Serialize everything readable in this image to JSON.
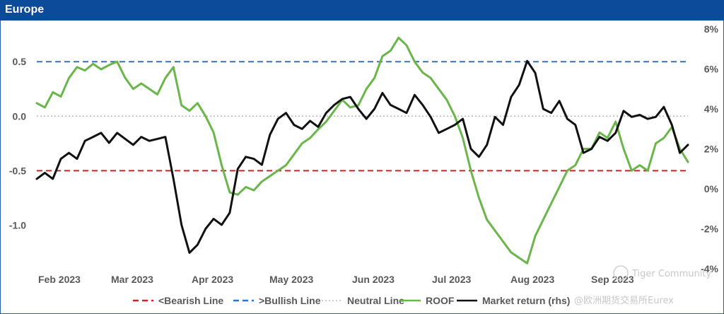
{
  "panel": {
    "title": "Europe"
  },
  "chart_data": {
    "type": "line",
    "title": "Europe",
    "x_ticks": [
      "Feb 2023",
      "Mar 2023",
      "Apr 2023",
      "May 2023",
      "Jun 2023",
      "Jul 2023",
      "Aug 2023",
      "Sep 2023"
    ],
    "y_left": {
      "min": -1.4,
      "max": 0.8,
      "ticks": [
        "0.5",
        "0.0",
        "-0.5",
        "-1.0"
      ],
      "tick_values": [
        0.5,
        0.0,
        -0.5,
        -1.0
      ]
    },
    "y_right": {
      "min": -4,
      "max": 8,
      "ticks": [
        "8%",
        "6%",
        "4%",
        "2%",
        "0%",
        "-2%",
        "-4%"
      ],
      "tick_values": [
        8,
        6,
        4,
        2,
        0,
        -2,
        -4
      ]
    },
    "reference_lines": [
      {
        "name": "<Bearish Line",
        "value": -0.5,
        "color": "#c0262d",
        "dash": "dashed"
      },
      {
        "name": ">Bullish Line",
        "value": 0.5,
        "color": "#2e75c9",
        "dash": "dashed"
      },
      {
        "name": "Neutral Line",
        "value": 0.0,
        "color": "#b8b8b8",
        "dash": "dotted"
      }
    ],
    "series": [
      {
        "name": "ROOF",
        "axis": "left",
        "color": "#6ab64a",
        "x": [
          0,
          3,
          6,
          9,
          12,
          15,
          18,
          21,
          24,
          27,
          30,
          33,
          36,
          39,
          42,
          45,
          48,
          51,
          54,
          57,
          60,
          63,
          66,
          69,
          72,
          75,
          78,
          81,
          84,
          87,
          90,
          93,
          96,
          99,
          102,
          105,
          108,
          111,
          114,
          117,
          120,
          123,
          126,
          129,
          132,
          135,
          138,
          141,
          144,
          147,
          150,
          153,
          156,
          159,
          162,
          165,
          168,
          171,
          174,
          177,
          180,
          183,
          186,
          189,
          192,
          195,
          198,
          201,
          204,
          207,
          210,
          213,
          216,
          219,
          222,
          225,
          228,
          231,
          234,
          237,
          240,
          243
        ],
        "values": [
          0.12,
          0.08,
          0.22,
          0.18,
          0.35,
          0.45,
          0.42,
          0.48,
          0.43,
          0.47,
          0.5,
          0.35,
          0.25,
          0.3,
          0.25,
          0.2,
          0.35,
          0.45,
          0.1,
          0.05,
          0.12,
          0.0,
          -0.15,
          -0.45,
          -0.7,
          -0.72,
          -0.65,
          -0.68,
          -0.6,
          -0.55,
          -0.5,
          -0.45,
          -0.35,
          -0.25,
          -0.2,
          -0.12,
          -0.05,
          0.05,
          0.15,
          0.08,
          0.1,
          0.25,
          0.35,
          0.55,
          0.6,
          0.72,
          0.65,
          0.5,
          0.4,
          0.35,
          0.25,
          0.15,
          0.0,
          -0.2,
          -0.5,
          -0.75,
          -0.95,
          -1.05,
          -1.15,
          -1.25,
          -1.3,
          -1.35,
          -1.1,
          -0.95,
          -0.8,
          -0.65,
          -0.5,
          -0.45,
          -0.3,
          -0.3,
          -0.15,
          -0.2,
          -0.05,
          -0.3,
          -0.5,
          -0.45,
          -0.5,
          -0.25,
          -0.2,
          -0.1,
          -0.3,
          -0.42
        ]
      },
      {
        "name": "Market return (rhs)",
        "axis": "right",
        "color": "#111111",
        "x": [
          0,
          3,
          6,
          9,
          12,
          15,
          18,
          21,
          24,
          27,
          30,
          33,
          36,
          39,
          42,
          45,
          48,
          51,
          54,
          57,
          60,
          63,
          66,
          69,
          72,
          75,
          78,
          81,
          84,
          87,
          90,
          93,
          96,
          99,
          102,
          105,
          108,
          111,
          114,
          117,
          120,
          123,
          126,
          129,
          132,
          135,
          138,
          141,
          144,
          147,
          150,
          153,
          156,
          159,
          162,
          165,
          168,
          171,
          174,
          177,
          180,
          183,
          186,
          189,
          192,
          195,
          198,
          201,
          204,
          207,
          210,
          213,
          216,
          219,
          222,
          225,
          228,
          231,
          234,
          237,
          240,
          243
        ],
        "values": [
          0.5,
          0.8,
          0.5,
          1.5,
          1.8,
          1.5,
          2.4,
          2.6,
          2.8,
          2.3,
          2.8,
          2.5,
          2.2,
          2.6,
          2.4,
          2.5,
          2.6,
          0.5,
          -1.8,
          -3.2,
          -2.8,
          -2.0,
          -1.5,
          -1.8,
          -1.2,
          1.0,
          1.6,
          1.5,
          1.2,
          2.7,
          3.5,
          3.8,
          3.2,
          3.0,
          3.4,
          3.1,
          3.8,
          4.2,
          4.5,
          4.6,
          4.0,
          3.5,
          4.0,
          4.8,
          4.2,
          4.0,
          3.8,
          4.7,
          4.2,
          3.6,
          2.8,
          3.0,
          3.2,
          3.5,
          2.0,
          1.6,
          2.2,
          3.6,
          3.2,
          4.6,
          5.2,
          6.4,
          5.8,
          4.0,
          3.8,
          4.4,
          3.5,
          3.2,
          1.8,
          2.0,
          2.6,
          2.4,
          2.8,
          3.9,
          3.6,
          3.7,
          3.5,
          3.6,
          4.1,
          3.2,
          1.8,
          2.2
        ]
      }
    ],
    "legend": {
      "placement": "bottom",
      "items": [
        {
          "label": "<Bearish Line",
          "color": "#c0262d",
          "style": "dashed"
        },
        {
          "label": ">Bullish Line",
          "color": "#2e75c9",
          "style": "dashed"
        },
        {
          "label": "Neutral Line",
          "color": "#b8b8b8",
          "style": "dotted"
        },
        {
          "label": "ROOF",
          "color": "#6ab64a",
          "style": "solid"
        },
        {
          "label": "Market return (rhs)",
          "color": "#111111",
          "style": "solid"
        }
      ]
    }
  },
  "watermark": {
    "line1": "Tiger Community",
    "line2": "@欧洲期货交易所Eurex"
  }
}
